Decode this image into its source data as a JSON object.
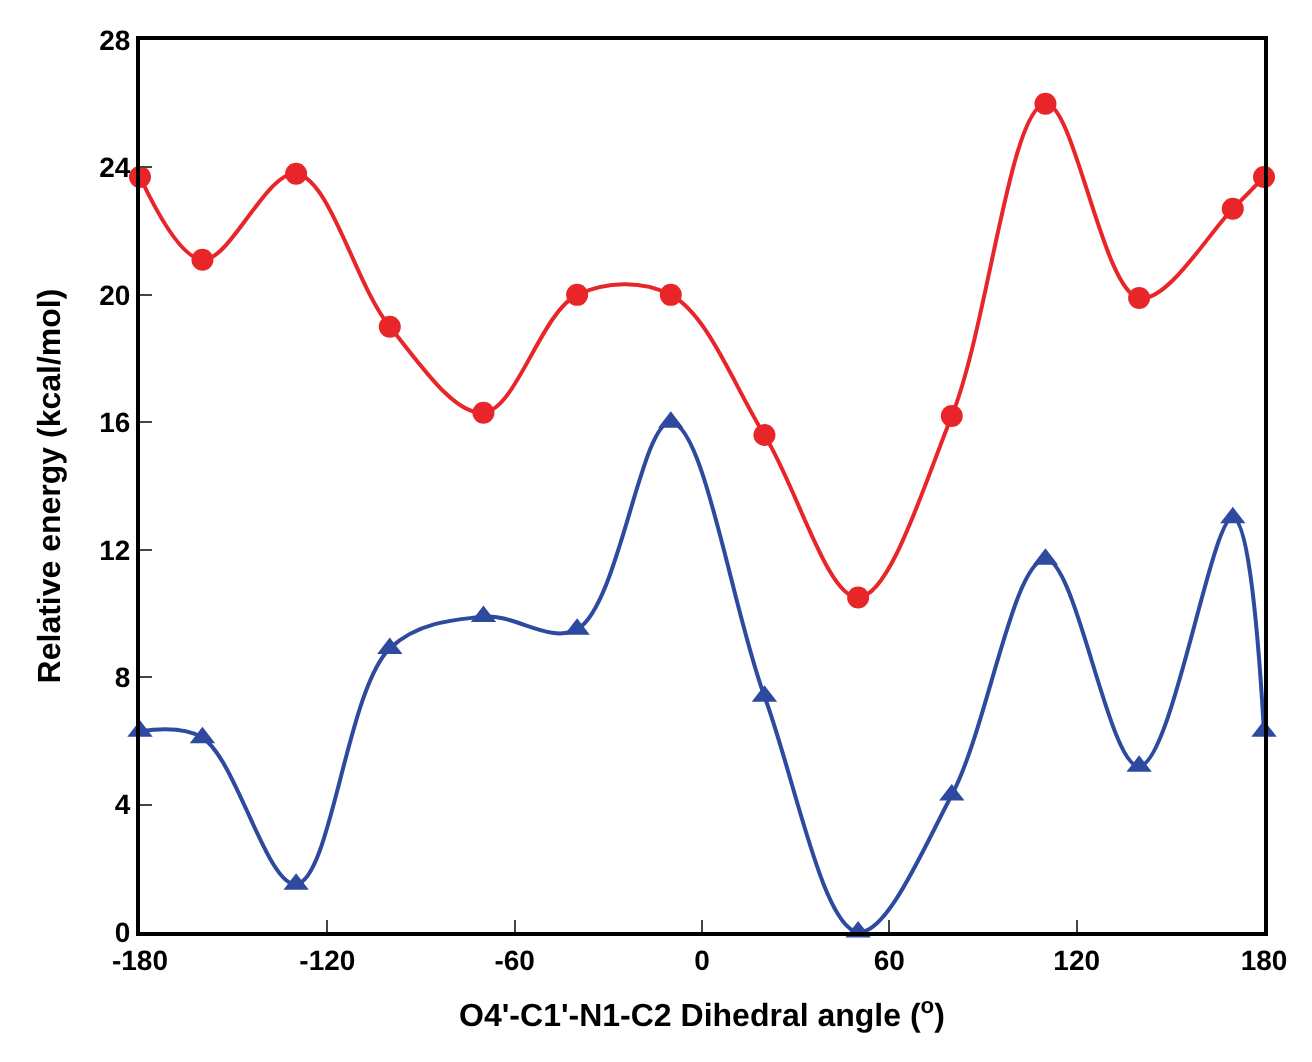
{
  "chart_data": {
    "type": "line",
    "xlabel": "O4'-C1'-N1-C2 Dihedral angle ($^{o}$)",
    "ylabel": "Relative energy (kcal/mol)",
    "x": [
      -180,
      -160,
      -130,
      -100,
      -70,
      -40,
      -10,
      20,
      50,
      80,
      110,
      140,
      170,
      180
    ],
    "series": [
      {
        "color": "#e8262a",
        "marker": "circle",
        "values": [
          23.7,
          21.1,
          23.8,
          19.0,
          16.3,
          20.0,
          20.0,
          15.6,
          10.5,
          16.2,
          26.0,
          19.9,
          22.7,
          23.7
        ]
      },
      {
        "color": "#2e4a9e",
        "marker": "triangle",
        "values": [
          6.3,
          6.1,
          1.5,
          8.9,
          9.9,
          9.5,
          16.0,
          7.4,
          0.0,
          4.3,
          11.7,
          5.2,
          13.0,
          6.3
        ]
      }
    ],
    "xlim": [
      -180,
      180
    ],
    "xticks": [
      -180,
      -120,
      -60,
      0,
      60,
      120,
      180
    ],
    "ylim": [
      0,
      28
    ],
    "yticks": [
      0,
      4,
      8,
      12,
      16,
      20,
      24,
      28
    ]
  }
}
